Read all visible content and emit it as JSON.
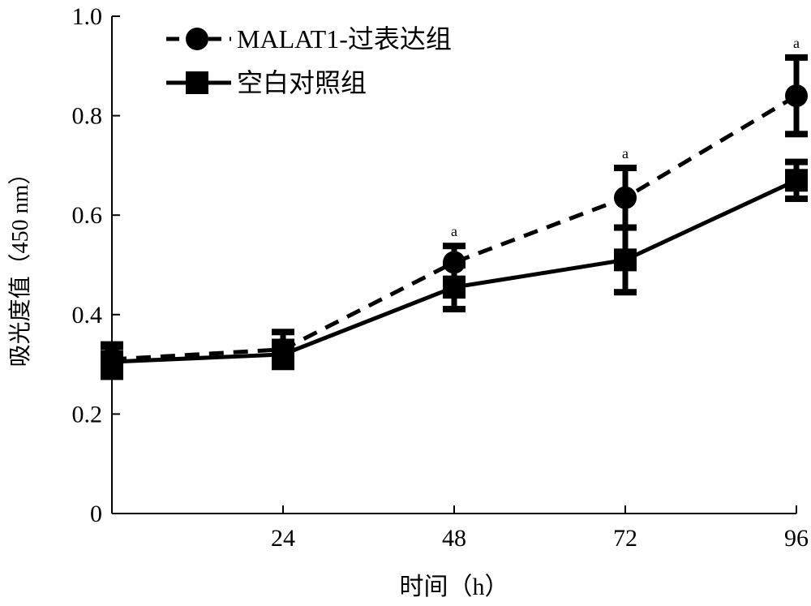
{
  "chart_data": {
    "type": "line",
    "title": "",
    "xlabel": "时间（h）",
    "ylabel": "吸光度值（450 nm）",
    "xlim": [
      0,
      96
    ],
    "ylim": [
      0,
      1.0
    ],
    "x": [
      0,
      24,
      48,
      72,
      96
    ],
    "x_ticks": [
      "24",
      "48",
      "72",
      "96"
    ],
    "x_tick_values": [
      24,
      48,
      72,
      96
    ],
    "y_ticks": [
      "0",
      "0.2",
      "0.4",
      "0.6",
      "0.8",
      "1.0"
    ],
    "y_tick_values": [
      0,
      0.2,
      0.4,
      0.6,
      0.8,
      1.0
    ],
    "grid": false,
    "legend_position": "top-left",
    "series": [
      {
        "name": "MALAT1-过表达组",
        "style": "dashed",
        "marker": "circle",
        "values": [
          0.31,
          0.33,
          0.505,
          0.635,
          0.84
        ],
        "errors": [
          0.03,
          0.035,
          0.033,
          0.06,
          0.077
        ],
        "annotations": [
          "",
          "",
          "a",
          "a",
          "a"
        ]
      },
      {
        "name": "空白对照组",
        "style": "solid",
        "marker": "square",
        "values": [
          0.305,
          0.32,
          0.455,
          0.51,
          0.67
        ],
        "errors": [
          0.03,
          0.025,
          0.044,
          0.065,
          0.037
        ],
        "annotations": [
          "",
          "",
          "",
          "",
          ""
        ]
      }
    ],
    "colors": {
      "line": "#000000",
      "background": "#ffffff"
    }
  }
}
